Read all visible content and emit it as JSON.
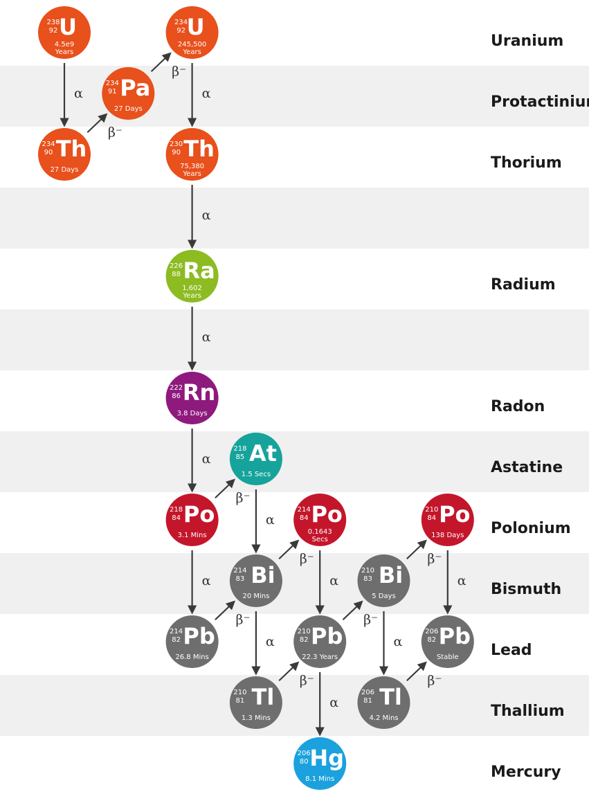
{
  "elements": [
    "Uranium",
    "Protactinium",
    "Thorium",
    "Radium",
    "Radon",
    "Astatine",
    "Polonium",
    "Bismuth",
    "Lead",
    "Thallium",
    "Mercury"
  ],
  "nodes": [
    {
      "symbol": "U",
      "mass": "238",
      "z": "92",
      "half_life": [
        "4.5e9",
        "Years"
      ]
    },
    {
      "symbol": "Pa",
      "mass": "234",
      "z": "91",
      "half_life": [
        "27 Days"
      ]
    },
    {
      "symbol": "U",
      "mass": "234",
      "z": "92",
      "half_life": [
        "245,500",
        "Years"
      ]
    },
    {
      "symbol": "Th",
      "mass": "234",
      "z": "90",
      "half_life": [
        "27 Days"
      ]
    },
    {
      "symbol": "Th",
      "mass": "230",
      "z": "90",
      "half_life": [
        "75,380",
        "Years"
      ]
    },
    {
      "symbol": "Ra",
      "mass": "226",
      "z": "88",
      "half_life": [
        "1,602",
        "Years"
      ]
    },
    {
      "symbol": "Rn",
      "mass": "222",
      "z": "86",
      "half_life": [
        "3.8 Days"
      ]
    },
    {
      "symbol": "At",
      "mass": "218",
      "z": "85",
      "half_life": [
        "1.5 Secs"
      ]
    },
    {
      "symbol": "Po",
      "mass": "218",
      "z": "84",
      "half_life": [
        "3.1 Mins"
      ]
    },
    {
      "symbol": "Po",
      "mass": "214",
      "z": "84",
      "half_life": [
        "0.1643",
        "Secs"
      ]
    },
    {
      "symbol": "Po",
      "mass": "210",
      "z": "84",
      "half_life": [
        "138 Days"
      ]
    },
    {
      "symbol": "Bi",
      "mass": "214",
      "z": "83",
      "half_life": [
        "20 Mins"
      ]
    },
    {
      "symbol": "Bi",
      "mass": "210",
      "z": "83",
      "half_life": [
        "5 Days"
      ]
    },
    {
      "symbol": "Pb",
      "mass": "214",
      "z": "82",
      "half_life": [
        "26.8 Mins"
      ]
    },
    {
      "symbol": "Pb",
      "mass": "210",
      "z": "82",
      "half_life": [
        "22.3 Years"
      ]
    },
    {
      "symbol": "Pb",
      "mass": "206",
      "z": "82",
      "half_life": [
        "Stable"
      ]
    },
    {
      "symbol": "Tl",
      "mass": "210",
      "z": "81",
      "half_life": [
        "1.3 Mins"
      ]
    },
    {
      "symbol": "Tl",
      "mass": "206",
      "z": "81",
      "half_life": [
        "4.2 Mins"
      ]
    },
    {
      "symbol": "Hg",
      "mass": "206",
      "z": "80",
      "half_life": [
        "8.1 Mins"
      ]
    }
  ],
  "edges": [
    {
      "label": "α"
    },
    {
      "label": "β⁻"
    },
    {
      "label": "β⁻"
    },
    {
      "label": "α"
    },
    {
      "label": "α"
    },
    {
      "label": "α"
    },
    {
      "label": "α"
    },
    {
      "label": "β⁻"
    },
    {
      "label": "α"
    },
    {
      "label": "α"
    },
    {
      "label": "β⁻"
    },
    {
      "label": "β⁻"
    },
    {
      "label": "α"
    },
    {
      "label": "α"
    },
    {
      "label": "β⁻"
    },
    {
      "label": "β⁻"
    },
    {
      "label": "α"
    },
    {
      "label": "β⁻"
    },
    {
      "label": "α"
    },
    {
      "label": "α"
    },
    {
      "label": "β⁻"
    }
  ]
}
